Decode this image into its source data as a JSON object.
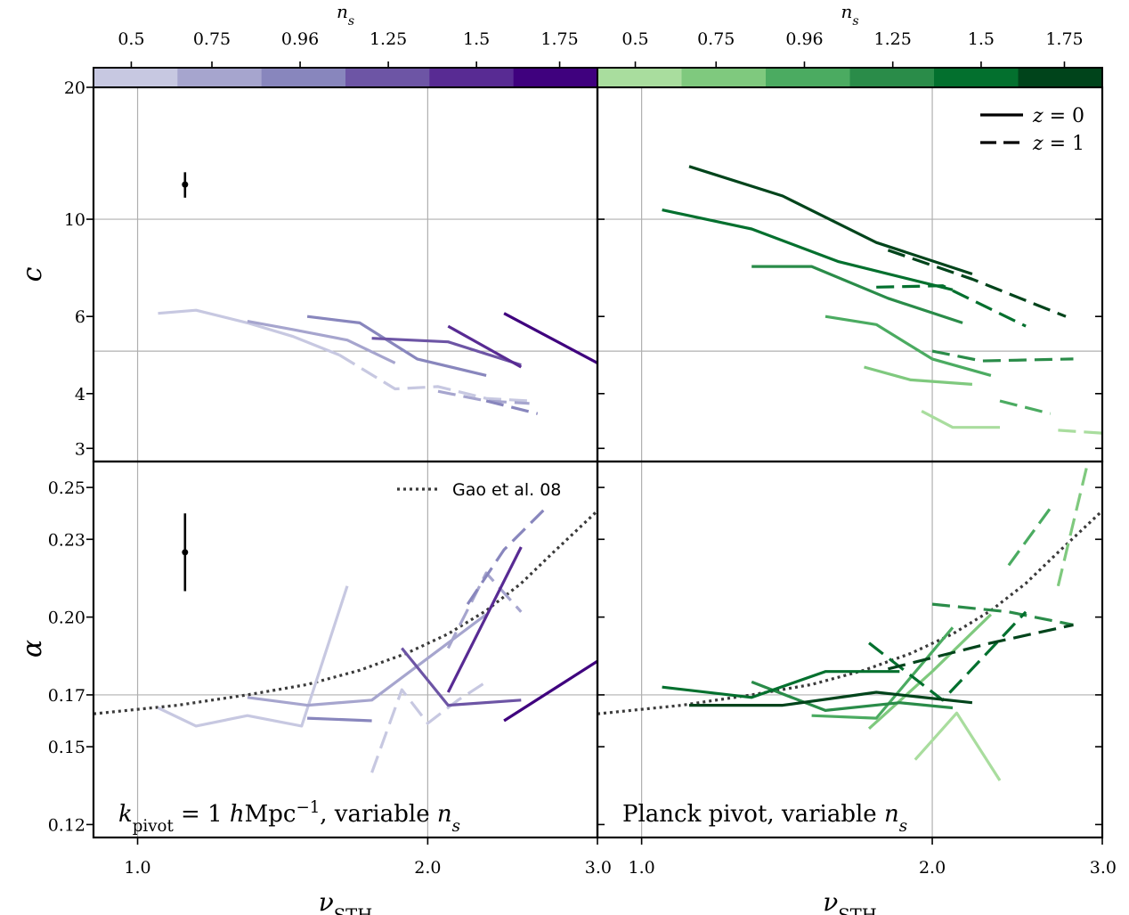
{
  "figure": {
    "colorbar_label": "n_s",
    "colorbar_ticks": [
      "0.5",
      "0.75",
      "0.96",
      "1.25",
      "1.5",
      "1.75"
    ],
    "colormaps": {
      "purple": [
        "#c7c8e1",
        "#a6a5ce",
        "#8886bd",
        "#6d55a5",
        "#582b93",
        "#3f017e"
      ],
      "green": [
        "#a9dd9e",
        "#7fc97e",
        "#4bab61",
        "#2a8c49",
        "#03702e",
        "#00441b"
      ]
    },
    "legend_linestyle": [
      {
        "label": "z = 0",
        "style": "solid"
      },
      {
        "label": "z = 1",
        "style": "dashed"
      }
    ],
    "legend_reference": {
      "label": "Gao et al. 08",
      "style": "dotted"
    },
    "xlabel": "ν_STH",
    "x_ticks": [
      "1.0",
      "2.0",
      "3.0"
    ],
    "top_ylabel": "c",
    "top_yticks": [
      "3",
      "4",
      "6",
      "10",
      "20"
    ],
    "bottom_ylabel": "α",
    "bottom_yticks": [
      "0.12",
      "0.15",
      "0.17",
      "0.20",
      "0.23",
      "0.25"
    ]
  },
  "chart_data": [
    {
      "type": "line",
      "panel": "top-left",
      "yscale": "log",
      "xscale": "log",
      "xlim": [
        0.9,
        3.0
      ],
      "ylim": [
        2.8,
        20
      ],
      "colormap": "purple",
      "annotation": "",
      "errorbar": {
        "x": 1.12,
        "y": 12.0,
        "yerr_low": 0.8,
        "yerr_high": 0.8
      },
      "series": [
        {
          "color_index": 0,
          "style": "solid",
          "x": [
            1.05,
            1.15,
            1.3,
            1.45,
            1.62
          ],
          "y": [
            6.1,
            6.2,
            5.8,
            5.4,
            4.9
          ]
        },
        {
          "color_index": 0,
          "style": "dashed",
          "x": [
            1.62,
            1.85,
            2.05,
            2.3,
            2.55
          ],
          "y": [
            4.9,
            4.1,
            4.15,
            3.9,
            3.85
          ]
        },
        {
          "color_index": 1,
          "style": "solid",
          "x": [
            1.3,
            1.45,
            1.65,
            1.85
          ],
          "y": [
            5.85,
            5.6,
            5.3,
            4.7
          ]
        },
        {
          "color_index": 1,
          "style": "dashed",
          "x": [
            2.05,
            2.3,
            2.55
          ],
          "y": [
            4.05,
            3.85,
            3.8
          ]
        },
        {
          "color_index": 2,
          "style": "solid",
          "x": [
            1.5,
            1.7,
            1.95,
            2.3
          ],
          "y": [
            6.0,
            5.8,
            4.8,
            4.4
          ]
        },
        {
          "color_index": 2,
          "style": "dashed",
          "x": [
            2.3,
            2.6
          ],
          "y": [
            3.85,
            3.6
          ]
        },
        {
          "color_index": 3,
          "style": "solid",
          "x": [
            1.75,
            2.1,
            2.5
          ],
          "y": [
            5.35,
            5.25,
            4.65
          ]
        },
        {
          "color_index": 4,
          "style": "solid",
          "x": [
            2.1,
            2.5
          ],
          "y": [
            5.7,
            4.6
          ]
        },
        {
          "color_index": 5,
          "style": "solid",
          "x": [
            2.4,
            3.0
          ],
          "y": [
            6.1,
            4.7
          ]
        }
      ]
    },
    {
      "type": "line",
      "panel": "top-right",
      "yscale": "log",
      "xscale": "log",
      "xlim": [
        0.9,
        3.0
      ],
      "ylim": [
        2.8,
        20
      ],
      "colormap": "green",
      "annotation": "",
      "series": [
        {
          "color_index": 0,
          "style": "solid",
          "x": [
            1.95,
            2.1,
            2.35
          ],
          "y": [
            3.65,
            3.35,
            3.35
          ]
        },
        {
          "color_index": 0,
          "style": "dashed",
          "x": [
            2.7,
            3.0
          ],
          "y": [
            3.3,
            3.25
          ]
        },
        {
          "color_index": 1,
          "style": "solid",
          "x": [
            1.7,
            1.9,
            2.2
          ],
          "y": [
            4.6,
            4.3,
            4.2
          ]
        },
        {
          "color_index": 2,
          "style": "solid",
          "x": [
            1.55,
            1.75,
            2.0,
            2.3
          ],
          "y": [
            6.0,
            5.75,
            4.8,
            4.4
          ]
        },
        {
          "color_index": 2,
          "style": "dashed",
          "x": [
            2.35,
            2.65
          ],
          "y": [
            3.85,
            3.6
          ]
        },
        {
          "color_index": 3,
          "style": "solid",
          "x": [
            1.3,
            1.5,
            1.8,
            2.15
          ],
          "y": [
            7.8,
            7.8,
            6.6,
            5.8
          ]
        },
        {
          "color_index": 3,
          "style": "dashed",
          "x": [
            2.0,
            2.25,
            2.8
          ],
          "y": [
            5.0,
            4.75,
            4.8
          ]
        },
        {
          "color_index": 4,
          "style": "solid",
          "x": [
            1.05,
            1.3,
            1.6,
            2.1
          ],
          "y": [
            10.5,
            9.5,
            8.0,
            6.9
          ]
        },
        {
          "color_index": 4,
          "style": "dashed",
          "x": [
            1.75,
            2.05,
            2.5
          ],
          "y": [
            7.0,
            7.05,
            5.7
          ]
        },
        {
          "color_index": 5,
          "style": "solid",
          "x": [
            1.12,
            1.4,
            1.75,
            2.2
          ],
          "y": [
            13.2,
            11.3,
            8.85,
            7.5
          ]
        },
        {
          "color_index": 5,
          "style": "dashed",
          "x": [
            1.8,
            2.2,
            2.75
          ],
          "y": [
            8.5,
            7.3,
            6.0
          ]
        }
      ]
    },
    {
      "type": "line",
      "panel": "bottom-left",
      "yscale": "linear",
      "xscale": "log",
      "xlim": [
        0.9,
        3.0
      ],
      "ylim": [
        0.115,
        0.26
      ],
      "colormap": "purple",
      "annotation": "k_pivot = 1 hMpc⁻¹, variable n_s",
      "errorbar": {
        "x": 1.12,
        "y": 0.225,
        "yerr_low": 0.015,
        "yerr_high": 0.015
      },
      "reference_curve": {
        "label": "Gao et al. 08",
        "x": [
          0.9,
          1.1,
          1.3,
          1.5,
          1.7,
          1.9,
          2.1,
          2.3,
          2.5,
          2.7,
          3.0
        ],
        "y": [
          0.1627,
          0.166,
          0.17,
          0.174,
          0.1795,
          0.186,
          0.1935,
          0.2025,
          0.213,
          0.225,
          0.241
        ]
      },
      "series": [
        {
          "color_index": 0,
          "style": "solid",
          "x": [
            1.05,
            1.15,
            1.3,
            1.48,
            1.65
          ],
          "y": [
            0.165,
            0.158,
            0.162,
            0.158,
            0.212
          ]
        },
        {
          "color_index": 0,
          "style": "dashed",
          "x": [
            1.75,
            1.88,
            2.0,
            2.15,
            2.3
          ],
          "y": [
            0.14,
            0.172,
            0.159,
            0.168,
            0.175
          ]
        },
        {
          "color_index": 1,
          "style": "solid",
          "x": [
            1.3,
            1.5,
            1.75,
            2.1,
            2.3
          ],
          "y": [
            0.169,
            0.166,
            0.168,
            0.19,
            0.201
          ]
        },
        {
          "color_index": 1,
          "style": "dashed",
          "x": [
            2.1,
            2.3,
            2.5
          ],
          "y": [
            0.188,
            0.217,
            0.202
          ]
        },
        {
          "color_index": 2,
          "style": "solid",
          "x": [
            1.5,
            1.75
          ],
          "y": [
            0.161,
            0.16
          ]
        },
        {
          "color_index": 2,
          "style": "dashed",
          "x": [
            2.2,
            2.4,
            2.65
          ],
          "y": [
            0.205,
            0.226,
            0.242
          ]
        },
        {
          "color_index": 3,
          "style": "solid",
          "x": [
            1.88,
            2.1,
            2.5
          ],
          "y": [
            0.188,
            0.166,
            0.168
          ]
        },
        {
          "color_index": 4,
          "style": "solid",
          "x": [
            2.1,
            2.5
          ],
          "y": [
            0.171,
            0.227
          ]
        },
        {
          "color_index": 5,
          "style": "solid",
          "x": [
            2.4,
            3.0
          ],
          "y": [
            0.16,
            0.183
          ]
        }
      ]
    },
    {
      "type": "line",
      "panel": "bottom-right",
      "yscale": "linear",
      "xscale": "log",
      "xlim": [
        0.9,
        3.0
      ],
      "ylim": [
        0.115,
        0.26
      ],
      "colormap": "green",
      "annotation": "Planck pivot, variable n_s",
      "reference_curve": {
        "label": "Gao et al. 08",
        "x": [
          0.9,
          1.1,
          1.3,
          1.5,
          1.7,
          1.9,
          2.1,
          2.3,
          2.5,
          2.7,
          3.0
        ],
        "y": [
          0.1627,
          0.166,
          0.17,
          0.174,
          0.1795,
          0.186,
          0.1935,
          0.2025,
          0.213,
          0.225,
          0.241
        ]
      },
      "series": [
        {
          "color_index": 0,
          "style": "solid",
          "x": [
            1.92,
            2.12,
            2.35
          ],
          "y": [
            0.145,
            0.163,
            0.137
          ]
        },
        {
          "color_index": 1,
          "style": "solid",
          "x": [
            1.72,
            2.0,
            2.3
          ],
          "y": [
            0.157,
            0.179,
            0.201
          ]
        },
        {
          "color_index": 1,
          "style": "dashed",
          "x": [
            2.7,
            2.9
          ],
          "y": [
            0.212,
            0.26
          ]
        },
        {
          "color_index": 2,
          "style": "solid",
          "x": [
            1.5,
            1.75,
            2.1
          ],
          "y": [
            0.162,
            0.161,
            0.196
          ]
        },
        {
          "color_index": 2,
          "style": "dashed",
          "x": [
            2.4,
            2.65
          ],
          "y": [
            0.22,
            0.242
          ]
        },
        {
          "color_index": 3,
          "style": "solid",
          "x": [
            1.3,
            1.55,
            1.85,
            2.1
          ],
          "y": [
            0.175,
            0.164,
            0.167,
            0.165
          ]
        },
        {
          "color_index": 3,
          "style": "dashed",
          "x": [
            2.0,
            2.4,
            2.8
          ],
          "y": [
            0.205,
            0.202,
            0.197
          ]
        },
        {
          "color_index": 4,
          "style": "solid",
          "x": [
            1.05,
            1.3,
            1.55,
            1.85
          ],
          "y": [
            0.173,
            0.169,
            0.179,
            0.179
          ]
        },
        {
          "color_index": 4,
          "style": "dashed",
          "x": [
            1.72,
            2.05,
            2.5
          ],
          "y": [
            0.19,
            0.168,
            0.202
          ]
        },
        {
          "color_index": 5,
          "style": "solid",
          "x": [
            1.12,
            1.4,
            1.75,
            2.2
          ],
          "y": [
            0.166,
            0.166,
            0.171,
            0.167
          ]
        },
        {
          "color_index": 5,
          "style": "dashed",
          "x": [
            1.8,
            2.3,
            2.8
          ],
          "y": [
            0.18,
            0.19,
            0.197
          ]
        }
      ]
    }
  ]
}
